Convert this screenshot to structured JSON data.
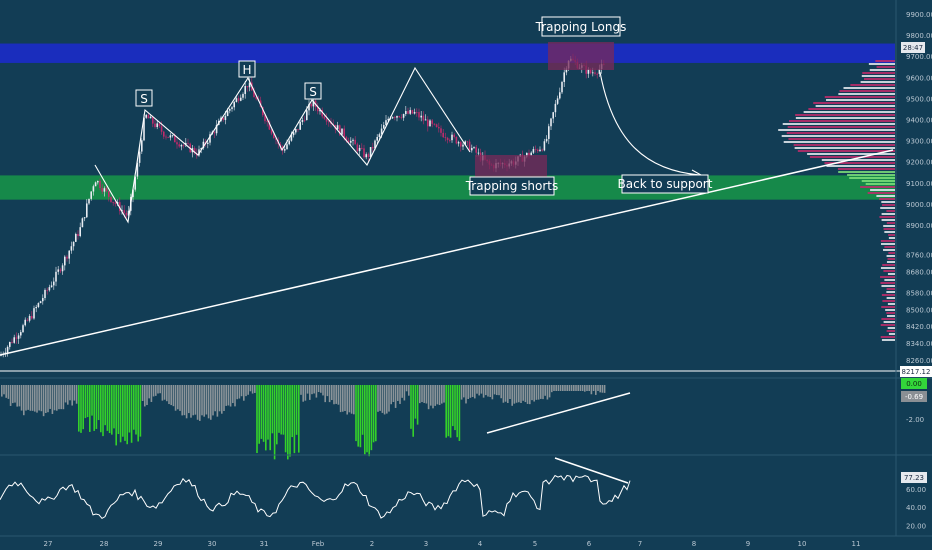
{
  "chart_data": [
    {
      "panel": "price",
      "type": "candlestick",
      "y_ticks": [
        9900,
        9800,
        9700,
        9600,
        9500,
        9400,
        9300,
        9200,
        9100,
        9000,
        8900,
        8760,
        8680,
        8580,
        8500,
        8420,
        8340,
        8260
      ],
      "ylim": [
        8240,
        9960
      ],
      "x_ticks": [
        "27",
        "28",
        "29",
        "30",
        "31",
        "Feb",
        "2",
        "3",
        "4",
        "5",
        "6",
        "7",
        "8",
        "9",
        "10",
        "11"
      ],
      "price_labels": {
        "countdown": "28:47",
        "marker": "8217.12"
      },
      "zones": [
        {
          "name": "resistance",
          "from": 9668,
          "to": 9760,
          "color": "#1a2dbd"
        },
        {
          "name": "support",
          "from": 9020,
          "to": 9135,
          "color": "#16894a"
        }
      ],
      "annotations": [
        {
          "text": "S",
          "key": "shoulder_left"
        },
        {
          "text": "H",
          "key": "head"
        },
        {
          "text": "S",
          "key": "shoulder_right"
        },
        {
          "text": "Trapping Longs",
          "key": "trap_longs"
        },
        {
          "text": "Trapping shorts",
          "key": "trap_shorts"
        },
        {
          "text": "Back to support",
          "key": "back_support"
        }
      ],
      "colors": {
        "up": "#e8ecf2",
        "down": "#c02b6b",
        "trendline": "#ffffff"
      }
    },
    {
      "panel": "momentum",
      "type": "bar",
      "y_ticks": [
        "-2.00"
      ],
      "last_value": "0.00",
      "secondary_value": "-0.69",
      "colors": {
        "neutral": "#8a9499",
        "green": "#34d12a"
      }
    },
    {
      "panel": "rsi",
      "type": "line",
      "y_ticks": [
        60,
        40,
        20
      ],
      "current_value": "77.23",
      "ylim": [
        12,
        88
      ]
    }
  ],
  "labels": {
    "s1": "S",
    "h": "H",
    "s2": "S",
    "trap_longs": "Trapping Longs",
    "trap_shorts": "Trapping shorts",
    "back_support": "Back to support",
    "countdown": "28:47",
    "price_marker": "8217.12",
    "osc_value": "0.00",
    "osc_value2": "-0.69",
    "osc_tick": "-2.00",
    "rsi_value": "77.23"
  }
}
